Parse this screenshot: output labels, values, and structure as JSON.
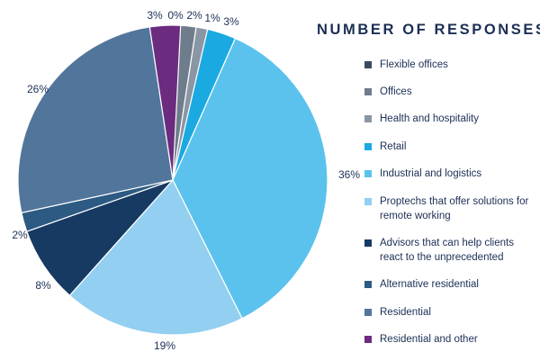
{
  "legend_title": "NUMBER OF RESPONSES",
  "chart_data": {
    "type": "pie",
    "title": "NUMBER OF RESPONSES",
    "legend_position": "right",
    "slices": [
      {
        "label": "Flexible offices",
        "value": 0,
        "display": "0%",
        "color": "#3b4a5e"
      },
      {
        "label": "Offices",
        "value": 2,
        "display": "2%",
        "color": "#6f7c8b"
      },
      {
        "label": "Health and hospitality",
        "value": 1,
        "display": "1%",
        "color": "#8a96a3"
      },
      {
        "label": "Retail",
        "value": 3,
        "display": "3%",
        "color": "#1ba9e2"
      },
      {
        "label": "Industrial and logistics",
        "value": 36,
        "display": "36%",
        "color": "#5bc2ee"
      },
      {
        "label": "Proptechs that offer solutions for remote working",
        "value": 19,
        "display": "19%",
        "color": "#92cff1"
      },
      {
        "label": "Advisors that can help clients react to the unprecedented",
        "value": 8,
        "display": "8%",
        "color": "#173a63"
      },
      {
        "label": "Alternative residential",
        "value": 2,
        "display": "2%",
        "color": "#2c5a82"
      },
      {
        "label": "Residential",
        "value": 26,
        "display": "26%",
        "color": "#52759b"
      },
      {
        "label": "Residential and other",
        "value": 3,
        "display": "3%",
        "color": "#6b2c80"
      }
    ]
  }
}
